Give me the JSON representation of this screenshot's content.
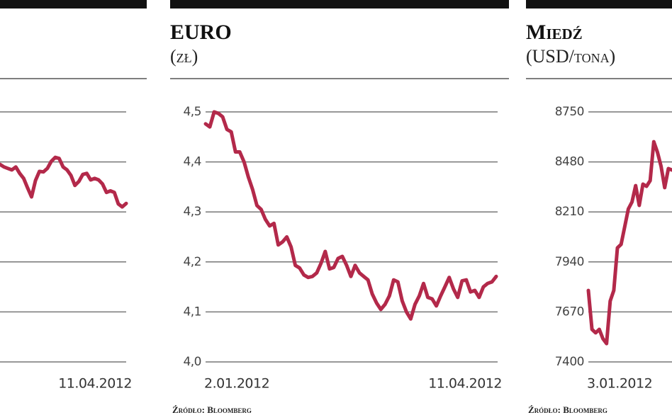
{
  "chart_data": [
    {
      "type": "line",
      "color": "#b3294a",
      "grid": true,
      "ylim": [
        0,
        5
      ],
      "categories": [
        null,
        null,
        null,
        null,
        null,
        null,
        null,
        null,
        null,
        null,
        null,
        null,
        null,
        null,
        null,
        null,
        null,
        null,
        null,
        null,
        null,
        null,
        null,
        null,
        null,
        null,
        null,
        null,
        null,
        null,
        null,
        null,
        "11.04.2012"
      ],
      "values": [
        3.95,
        3.9,
        3.87,
        3.84,
        3.9,
        3.77,
        3.67,
        3.48,
        3.3,
        3.63,
        3.81,
        3.8,
        3.87,
        4.01,
        4.09,
        4.07,
        3.9,
        3.84,
        3.73,
        3.53,
        3.61,
        3.75,
        3.77,
        3.64,
        3.67,
        3.64,
        3.56,
        3.39,
        3.42,
        3.39,
        3.16,
        3.1,
        3.17
      ]
    },
    {
      "type": "line",
      "title": "EURO",
      "subtitle": "(zł)",
      "source": "Źródło: Bloomberg",
      "color": "#b3294a",
      "grid": true,
      "ylim": [
        4.0,
        4.5
      ],
      "yticks": [
        {
          "value": 4.0,
          "label": "4,0"
        },
        {
          "value": 4.1,
          "label": "4,1"
        },
        {
          "value": 4.2,
          "label": "4,2"
        },
        {
          "value": 4.3,
          "label": "4,3"
        },
        {
          "value": 4.4,
          "label": "4,4"
        },
        {
          "value": 4.5,
          "label": "4,5"
        }
      ],
      "categories": [
        "2.01.2012",
        null,
        null,
        null,
        null,
        null,
        null,
        null,
        null,
        null,
        null,
        null,
        null,
        null,
        null,
        null,
        null,
        null,
        null,
        null,
        null,
        null,
        null,
        null,
        null,
        null,
        null,
        null,
        null,
        null,
        null,
        null,
        null,
        null,
        null,
        null,
        null,
        null,
        null,
        null,
        null,
        null,
        null,
        null,
        null,
        null,
        null,
        null,
        null,
        null,
        null,
        null,
        null,
        null,
        null,
        null,
        null,
        null,
        null,
        null,
        null,
        null,
        null,
        null,
        null,
        null,
        null,
        null,
        "11.04.2012"
      ],
      "values": [
        4.476,
        4.47,
        4.5,
        4.497,
        4.49,
        4.465,
        4.46,
        4.42,
        4.42,
        4.4,
        4.37,
        4.345,
        4.313,
        4.305,
        4.285,
        4.272,
        4.277,
        4.234,
        4.24,
        4.25,
        4.23,
        4.193,
        4.188,
        4.174,
        4.169,
        4.171,
        4.178,
        4.197,
        4.221,
        4.186,
        4.189,
        4.207,
        4.211,
        4.193,
        4.171,
        4.193,
        4.178,
        4.171,
        4.164,
        4.136,
        4.118,
        4.105,
        4.115,
        4.132,
        4.164,
        4.16,
        4.122,
        4.1,
        4.086,
        4.115,
        4.132,
        4.157,
        4.129,
        4.126,
        4.112,
        4.132,
        4.15,
        4.169,
        4.146,
        4.129,
        4.162,
        4.164,
        4.14,
        4.143,
        4.129,
        4.15,
        4.157,
        4.16,
        4.171
      ]
    },
    {
      "type": "line",
      "title": "Miedź",
      "subtitle": "(USD/tona)",
      "source": "Źródło: Bloomberg",
      "color": "#b3294a",
      "grid": true,
      "ylim": [
        7400,
        8750
      ],
      "yticks": [
        7400,
        7670,
        7940,
        8210,
        8480,
        8750
      ],
      "categories": [
        "3.01.2012",
        null,
        null,
        null,
        null,
        null,
        null,
        null,
        null,
        null,
        null,
        null,
        null,
        null,
        null,
        null,
        null,
        null,
        null,
        null,
        null,
        null,
        null,
        null
      ],
      "values": [
        7786,
        7576,
        7557,
        7576,
        7526,
        7499,
        7729,
        7786,
        8016,
        8035,
        8130,
        8226,
        8264,
        8352,
        8245,
        8360,
        8348,
        8379,
        8589,
        8532,
        8456,
        8341,
        8444,
        8436
      ]
    }
  ]
}
